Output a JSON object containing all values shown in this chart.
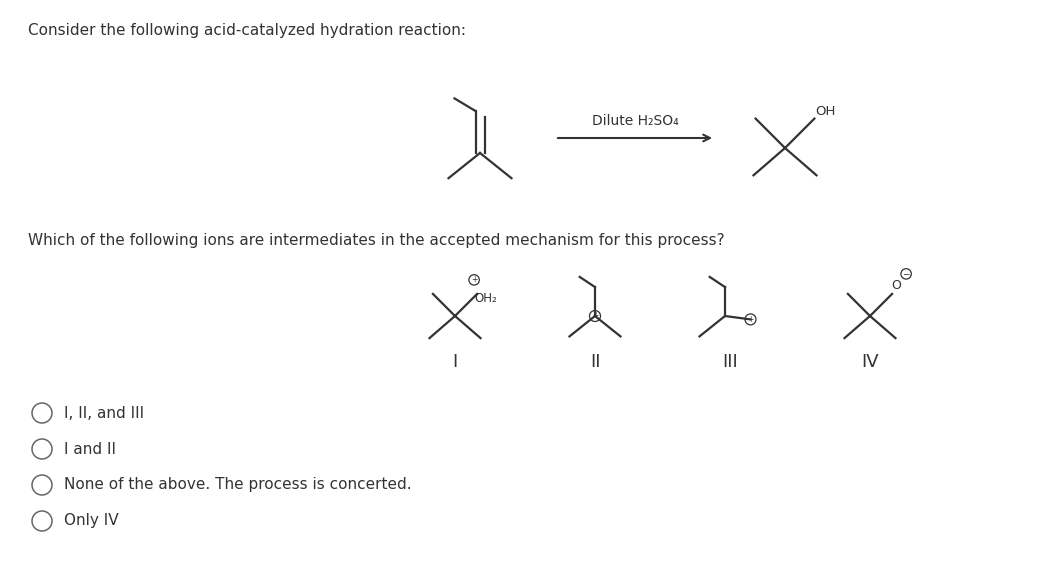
{
  "bg_color": "#ffffff",
  "title_text": "Consider the following acid-catalyzed hydration reaction:",
  "question_text": "Which of the following ions are intermediates in the accepted mechanism for this process?",
  "options": [
    "I, II, and III",
    "I and II",
    "None of the above. The process is concerted.",
    "Only IV"
  ],
  "arrow_label": "Dilute H₂SO₄",
  "label_fontsize": 11,
  "option_fontsize": 11,
  "roman_fontsize": 13
}
